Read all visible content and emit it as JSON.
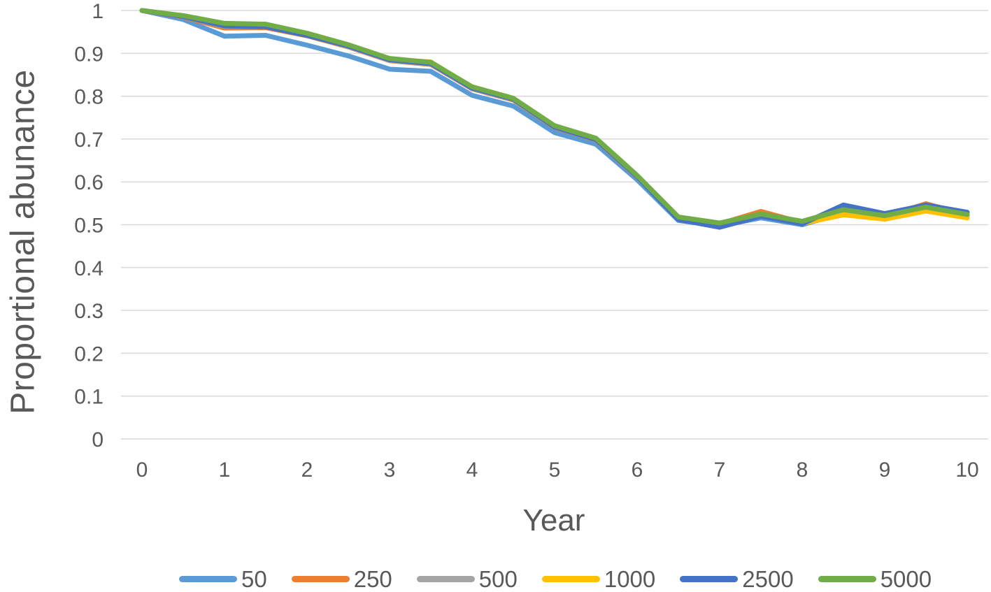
{
  "chart_data": {
    "type": "line",
    "title": "",
    "xlabel": "Year",
    "ylabel": "Proportional abunance",
    "x": [
      0,
      0.5,
      1,
      1.5,
      2,
      2.5,
      3,
      3.5,
      4,
      4.5,
      5,
      5.5,
      6,
      6.5,
      7,
      7.5,
      8,
      8.5,
      9,
      9.5,
      10
    ],
    "xlim": [
      0,
      10
    ],
    "ylim": [
      0,
      1
    ],
    "x_tick_labels": [
      "0",
      "1",
      "2",
      "3",
      "4",
      "5",
      "6",
      "7",
      "8",
      "9",
      "10"
    ],
    "y_tick_labels": [
      "0",
      "0.1",
      "0.2",
      "0.3",
      "0.4",
      "0.5",
      "0.6",
      "0.7",
      "0.8",
      "0.9",
      "1"
    ],
    "grid": "horizontal",
    "legend_position": "bottom",
    "series": [
      {
        "name": "50",
        "color": "#5B9BD5",
        "values": [
          1.0,
          0.979,
          0.94,
          0.942,
          0.919,
          0.894,
          0.863,
          0.858,
          0.802,
          0.777,
          0.715,
          0.688,
          0.605,
          0.51,
          0.497,
          0.516,
          0.5,
          0.528,
          0.513,
          0.534,
          0.52
        ]
      },
      {
        "name": "250",
        "color": "#ED7D31",
        "values": [
          1.0,
          0.985,
          0.959,
          0.96,
          0.941,
          0.915,
          0.883,
          0.874,
          0.817,
          0.791,
          0.727,
          0.698,
          0.612,
          0.515,
          0.502,
          0.531,
          0.505,
          0.533,
          0.519,
          0.549,
          0.523
        ]
      },
      {
        "name": "500",
        "color": "#A5A5A5",
        "values": [
          1.0,
          0.986,
          0.963,
          0.963,
          0.943,
          0.916,
          0.884,
          0.875,
          0.818,
          0.792,
          0.728,
          0.699,
          0.613,
          0.516,
          0.502,
          0.523,
          0.506,
          0.532,
          0.518,
          0.539,
          0.521
        ]
      },
      {
        "name": "1000",
        "color": "#FFC000",
        "values": [
          1.0,
          0.987,
          0.966,
          0.965,
          0.944,
          0.918,
          0.886,
          0.88,
          0.82,
          0.793,
          0.729,
          0.7,
          0.614,
          0.514,
          0.501,
          0.521,
          0.503,
          0.523,
          0.513,
          0.532,
          0.516
        ]
      },
      {
        "name": "2500",
        "color": "#4472C4",
        "values": [
          1.0,
          0.986,
          0.964,
          0.962,
          0.942,
          0.917,
          0.885,
          0.876,
          0.819,
          0.793,
          0.728,
          0.699,
          0.613,
          0.512,
          0.494,
          0.52,
          0.502,
          0.546,
          0.526,
          0.546,
          0.529
        ]
      },
      {
        "name": "5000",
        "color": "#70AD47",
        "values": [
          1.0,
          0.988,
          0.97,
          0.968,
          0.947,
          0.92,
          0.888,
          0.879,
          0.822,
          0.795,
          0.731,
          0.702,
          0.615,
          0.518,
          0.504,
          0.525,
          0.508,
          0.535,
          0.521,
          0.541,
          0.524
        ]
      }
    ]
  },
  "styles": {
    "text_color": "#595959",
    "grid_color": "#D9D9D9",
    "background": "#FFFFFF"
  }
}
